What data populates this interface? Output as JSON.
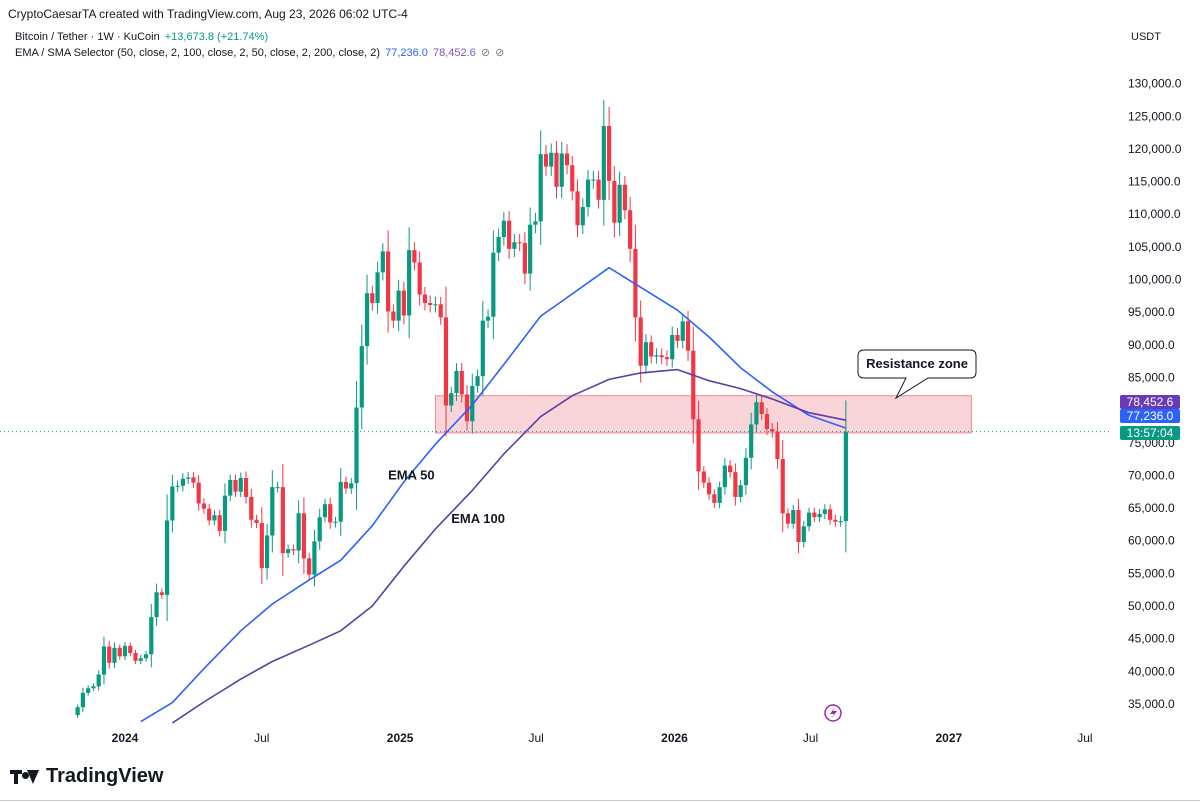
{
  "header": {
    "creator_line": "CryptoCaesarTA created with TradingView.com, Aug 23, 2026 06:02 UTC-4"
  },
  "legend": {
    "symbol": "Bitcoin / Tether · 1W · KuCoin",
    "change": "+13,673.8 (+21.74%)",
    "indicator": "EMA / SMA Selector (50, close, 2, 100, close, 2, 50, close, 2, 200, close, 2)",
    "ind_val1": "77,236.0",
    "ind_val2": "78,452.6",
    "hidden_icon": "⊘"
  },
  "currency": "USDT",
  "footer": {
    "brand": "TradingView"
  },
  "colors": {
    "up": "#089981",
    "down": "#f23645",
    "ema50": "#2962ff",
    "ema100": "#5b3ea6",
    "zone_fill": "#f7c6cb",
    "zone_stroke": "#f08a94"
  },
  "chart_data": {
    "type": "candlestick",
    "title": "Bitcoin / Tether · 1W · KuCoin",
    "y_axis": {
      "label": "USDT",
      "ticks": [
        35000,
        40000,
        45000,
        50000,
        55000,
        60000,
        65000,
        70000,
        75000,
        80000,
        85000,
        90000,
        95000,
        100000,
        105000,
        110000,
        115000,
        120000,
        125000,
        130000
      ],
      "tick_labels": [
        "35,000.0",
        "40,000.0",
        "45,000.0",
        "50,000.0",
        "55,000.0",
        "60,000.0",
        "65,000.0",
        "70,000.0",
        "75,000.0",
        "80,000.0",
        "85,000.0",
        "90,000.0",
        "95,000.0",
        "100,000.0",
        "105,000.0",
        "110,000.0",
        "115,000.0",
        "120,000.0",
        "125,000.0",
        "130,000.0"
      ],
      "range": [
        31000,
        135000
      ]
    },
    "x_axis": {
      "labels": [
        {
          "text": "2024",
          "date": "2024-01-01",
          "bold": true
        },
        {
          "text": "Jul",
          "date": "2024-07-01",
          "bold": false
        },
        {
          "text": "2025",
          "date": "2025-01-01",
          "bold": true
        },
        {
          "text": "Jul",
          "date": "2025-07-01",
          "bold": false
        },
        {
          "text": "2026",
          "date": "2026-01-01",
          "bold": true
        },
        {
          "text": "Jul",
          "date": "2026-07-01",
          "bold": false
        },
        {
          "text": "2027",
          "date": "2027-01-01",
          "bold": true
        },
        {
          "text": "Jul",
          "date": "2027-07-01",
          "bold": false
        }
      ],
      "range": [
        "2023-10-16",
        "2027-09-06"
      ]
    },
    "closes": [
      {
        "date": "2023-10-30",
        "close": 34500
      },
      {
        "date": "2023-11-06",
        "close": 36700
      },
      {
        "date": "2023-11-13",
        "close": 37400
      },
      {
        "date": "2023-11-20",
        "close": 37700
      },
      {
        "date": "2023-11-27",
        "close": 39500
      },
      {
        "date": "2023-12-04",
        "close": 43800
      },
      {
        "date": "2023-12-11",
        "close": 41300
      },
      {
        "date": "2023-12-18",
        "close": 43600
      },
      {
        "date": "2023-12-25",
        "close": 42300
      },
      {
        "date": "2024-01-01",
        "close": 43900
      },
      {
        "date": "2024-01-08",
        "close": 42800
      },
      {
        "date": "2024-01-15",
        "close": 41600
      },
      {
        "date": "2024-01-22",
        "close": 42000
      },
      {
        "date": "2024-01-29",
        "close": 42600
      },
      {
        "date": "2024-02-05",
        "close": 48300
      },
      {
        "date": "2024-02-12",
        "close": 52100
      },
      {
        "date": "2024-02-19",
        "close": 51700
      },
      {
        "date": "2024-02-26",
        "close": 63100
      },
      {
        "date": "2024-03-04",
        "close": 68300
      },
      {
        "date": "2024-03-11",
        "close": 68400
      },
      {
        "date": "2024-03-18",
        "close": 69500
      },
      {
        "date": "2024-03-25",
        "close": 69700
      },
      {
        "date": "2024-04-01",
        "close": 68900
      },
      {
        "date": "2024-04-08",
        "close": 65700
      },
      {
        "date": "2024-04-15",
        "close": 64900
      },
      {
        "date": "2024-04-22",
        "close": 63100
      },
      {
        "date": "2024-04-29",
        "close": 63900
      },
      {
        "date": "2024-05-06",
        "close": 61500
      },
      {
        "date": "2024-05-13",
        "close": 66900
      },
      {
        "date": "2024-05-20",
        "close": 69300
      },
      {
        "date": "2024-05-27",
        "close": 67500
      },
      {
        "date": "2024-06-03",
        "close": 69600
      },
      {
        "date": "2024-06-10",
        "close": 66700
      },
      {
        "date": "2024-06-17",
        "close": 63200
      },
      {
        "date": "2024-06-24",
        "close": 62700
      },
      {
        "date": "2024-07-01",
        "close": 55800
      },
      {
        "date": "2024-07-08",
        "close": 60800
      },
      {
        "date": "2024-07-15",
        "close": 68200
      },
      {
        "date": "2024-07-22",
        "close": 68200
      },
      {
        "date": "2024-07-29",
        "close": 58100
      },
      {
        "date": "2024-08-05",
        "close": 58700
      },
      {
        "date": "2024-08-12",
        "close": 58500
      },
      {
        "date": "2024-08-19",
        "close": 64200
      },
      {
        "date": "2024-08-26",
        "close": 57300
      },
      {
        "date": "2024-09-02",
        "close": 54800
      },
      {
        "date": "2024-09-09",
        "close": 59900
      },
      {
        "date": "2024-09-16",
        "close": 63600
      },
      {
        "date": "2024-09-23",
        "close": 65600
      },
      {
        "date": "2024-09-30",
        "close": 62800
      },
      {
        "date": "2024-10-07",
        "close": 62900
      },
      {
        "date": "2024-10-14",
        "close": 69000
      },
      {
        "date": "2024-10-21",
        "close": 68000
      },
      {
        "date": "2024-10-28",
        "close": 68800
      },
      {
        "date": "2024-11-04",
        "close": 80400
      },
      {
        "date": "2024-11-11",
        "close": 89800
      },
      {
        "date": "2024-11-18",
        "close": 97900
      },
      {
        "date": "2024-11-25",
        "close": 96400
      },
      {
        "date": "2024-12-02",
        "close": 101100
      },
      {
        "date": "2024-12-09",
        "close": 104300
      },
      {
        "date": "2024-12-16",
        "close": 95100
      },
      {
        "date": "2024-12-23",
        "close": 93700
      },
      {
        "date": "2024-12-30",
        "close": 98300
      },
      {
        "date": "2025-01-06",
        "close": 94500
      },
      {
        "date": "2025-01-13",
        "close": 104500
      },
      {
        "date": "2025-01-20",
        "close": 102600
      },
      {
        "date": "2025-01-27",
        "close": 97700
      },
      {
        "date": "2025-02-03",
        "close": 96400
      },
      {
        "date": "2025-02-10",
        "close": 96100
      },
      {
        "date": "2025-02-17",
        "close": 96200
      },
      {
        "date": "2025-02-24",
        "close": 94200
      },
      {
        "date": "2025-03-03",
        "close": 80700
      },
      {
        "date": "2025-03-10",
        "close": 82600
      },
      {
        "date": "2025-03-17",
        "close": 86000
      },
      {
        "date": "2025-03-24",
        "close": 82400
      },
      {
        "date": "2025-03-31",
        "close": 78300
      },
      {
        "date": "2025-04-07",
        "close": 83700
      },
      {
        "date": "2025-04-14",
        "close": 85200
      },
      {
        "date": "2025-04-21",
        "close": 93700
      },
      {
        "date": "2025-04-28",
        "close": 94300
      },
      {
        "date": "2025-05-05",
        "close": 104100
      },
      {
        "date": "2025-05-12",
        "close": 106500
      },
      {
        "date": "2025-05-19",
        "close": 109000
      },
      {
        "date": "2025-05-26",
        "close": 104700
      },
      {
        "date": "2025-06-02",
        "close": 105700
      },
      {
        "date": "2025-06-09",
        "close": 105600
      },
      {
        "date": "2025-06-16",
        "close": 100900
      },
      {
        "date": "2025-06-23",
        "close": 108400
      },
      {
        "date": "2025-06-30",
        "close": 108900
      },
      {
        "date": "2025-07-07",
        "close": 119200
      },
      {
        "date": "2025-07-14",
        "close": 117300
      },
      {
        "date": "2025-07-21",
        "close": 119400
      },
      {
        "date": "2025-07-28",
        "close": 114200
      },
      {
        "date": "2025-08-04",
        "close": 119300
      },
      {
        "date": "2025-08-11",
        "close": 117500
      },
      {
        "date": "2025-08-18",
        "close": 113500
      },
      {
        "date": "2025-08-25",
        "close": 108300
      },
      {
        "date": "2025-09-01",
        "close": 111100
      },
      {
        "date": "2025-09-08",
        "close": 115300
      },
      {
        "date": "2025-09-15",
        "close": 115300
      },
      {
        "date": "2025-09-22",
        "close": 112200
      },
      {
        "date": "2025-09-29",
        "close": 123500
      },
      {
        "date": "2025-10-06",
        "close": 115100
      },
      {
        "date": "2025-10-13",
        "close": 108700
      },
      {
        "date": "2025-10-20",
        "close": 114500
      },
      {
        "date": "2025-10-27",
        "close": 110600
      },
      {
        "date": "2025-11-03",
        "close": 104700
      },
      {
        "date": "2025-11-10",
        "close": 94200
      },
      {
        "date": "2025-11-17",
        "close": 86800
      },
      {
        "date": "2025-11-24",
        "close": 90400
      },
      {
        "date": "2025-12-01",
        "close": 88200
      },
      {
        "date": "2025-12-08",
        "close": 88400
      },
      {
        "date": "2025-12-15",
        "close": 88100
      },
      {
        "date": "2025-12-22",
        "close": 87800
      },
      {
        "date": "2025-12-29",
        "close": 91500
      },
      {
        "date": "2026-01-05",
        "close": 90600
      },
      {
        "date": "2026-01-12",
        "close": 93600
      },
      {
        "date": "2026-01-19",
        "close": 89100
      },
      {
        "date": "2026-01-26",
        "close": 78600
      },
      {
        "date": "2026-02-02",
        "close": 70600
      },
      {
        "date": "2026-02-09",
        "close": 68900
      },
      {
        "date": "2026-02-16",
        "close": 67100
      },
      {
        "date": "2026-02-23",
        "close": 65800
      },
      {
        "date": "2026-03-02",
        "close": 68200
      },
      {
        "date": "2026-03-09",
        "close": 71500
      },
      {
        "date": "2026-03-16",
        "close": 70500
      },
      {
        "date": "2026-03-23",
        "close": 66700
      },
      {
        "date": "2026-03-30",
        "close": 68500
      },
      {
        "date": "2026-04-06",
        "close": 72700
      },
      {
        "date": "2026-04-13",
        "close": 77800
      },
      {
        "date": "2026-04-20",
        "close": 81200
      },
      {
        "date": "2026-04-27",
        "close": 79400
      },
      {
        "date": "2026-05-04",
        "close": 77100
      },
      {
        "date": "2026-05-11",
        "close": 76700
      },
      {
        "date": "2026-05-18",
        "close": 72500
      },
      {
        "date": "2026-05-25",
        "close": 64200
      },
      {
        "date": "2026-06-01",
        "close": 62600
      },
      {
        "date": "2026-06-08",
        "close": 64700
      },
      {
        "date": "2026-06-15",
        "close": 59800
      },
      {
        "date": "2026-06-22",
        "close": 62200
      },
      {
        "date": "2026-06-29",
        "close": 64300
      },
      {
        "date": "2026-07-06",
        "close": 63600
      },
      {
        "date": "2026-07-13",
        "close": 64100
      },
      {
        "date": "2026-07-20",
        "close": 64800
      },
      {
        "date": "2026-07-27",
        "close": 63200
      },
      {
        "date": "2026-08-03",
        "close": 62900
      },
      {
        "date": "2026-08-10",
        "close": 63000
      },
      {
        "date": "2026-08-17",
        "close": 76700
      }
    ],
    "series": [
      {
        "name": "EMA 50",
        "color": "#2962ff",
        "points": [
          {
            "date": "2024-01-22",
            "value": 32300
          },
          {
            "date": "2024-03-04",
            "value": 35200
          },
          {
            "date": "2024-04-15",
            "value": 40400
          },
          {
            "date": "2024-06-03",
            "value": 46200
          },
          {
            "date": "2024-07-15",
            "value": 50300
          },
          {
            "date": "2024-09-02",
            "value": 54000
          },
          {
            "date": "2024-10-14",
            "value": 57000
          },
          {
            "date": "2024-11-25",
            "value": 62300
          },
          {
            "date": "2025-01-06",
            "value": 69000
          },
          {
            "date": "2025-02-17",
            "value": 74800
          },
          {
            "date": "2025-04-07",
            "value": 80800
          },
          {
            "date": "2025-05-19",
            "value": 87000
          },
          {
            "date": "2025-07-07",
            "value": 94400
          },
          {
            "date": "2025-08-18",
            "value": 97800
          },
          {
            "date": "2025-10-06",
            "value": 101800
          },
          {
            "date": "2025-11-17",
            "value": 98800
          },
          {
            "date": "2026-01-05",
            "value": 95300
          },
          {
            "date": "2026-02-16",
            "value": 91200
          },
          {
            "date": "2026-03-30",
            "value": 86500
          },
          {
            "date": "2026-05-11",
            "value": 82800
          },
          {
            "date": "2026-06-29",
            "value": 79200
          },
          {
            "date": "2026-08-17",
            "value": 77236
          }
        ]
      },
      {
        "name": "EMA 100",
        "color": "#5b3ea6",
        "points": [
          {
            "date": "2024-03-04",
            "value": 32100
          },
          {
            "date": "2024-04-15",
            "value": 35300
          },
          {
            "date": "2024-06-03",
            "value": 38800
          },
          {
            "date": "2024-07-15",
            "value": 41500
          },
          {
            "date": "2024-09-02",
            "value": 44000
          },
          {
            "date": "2024-10-14",
            "value": 46200
          },
          {
            "date": "2024-11-25",
            "value": 50000
          },
          {
            "date": "2025-01-06",
            "value": 56100
          },
          {
            "date": "2025-02-17",
            "value": 61800
          },
          {
            "date": "2025-04-07",
            "value": 67700
          },
          {
            "date": "2025-05-19",
            "value": 73300
          },
          {
            "date": "2025-07-07",
            "value": 79000
          },
          {
            "date": "2025-08-18",
            "value": 82200
          },
          {
            "date": "2025-10-06",
            "value": 84700
          },
          {
            "date": "2025-11-17",
            "value": 85700
          },
          {
            "date": "2026-01-05",
            "value": 86200
          },
          {
            "date": "2026-02-16",
            "value": 84500
          },
          {
            "date": "2026-03-30",
            "value": 83300
          },
          {
            "date": "2026-05-11",
            "value": 81700
          },
          {
            "date": "2026-06-29",
            "value": 79600
          },
          {
            "date": "2026-08-17",
            "value": 78452.6
          }
        ]
      }
    ],
    "resistance_zone": {
      "label": "Resistance zone",
      "y_low": 76500,
      "y_high": 82200,
      "start": "2025-02-17",
      "end": "2027-01-31"
    },
    "annotations": [
      {
        "text": "EMA 50",
        "date": "2024-12-16",
        "value": 69400
      },
      {
        "text": "EMA 100",
        "date": "2025-03-10",
        "value": 62700
      }
    ],
    "price_labels": [
      {
        "text": "78,452.6",
        "color": "#673ab7"
      },
      {
        "text": "77,236.0",
        "color": "#2962ff"
      },
      {
        "text": "13:57:04",
        "color": "#089981"
      }
    ],
    "last_price": 76700
  }
}
